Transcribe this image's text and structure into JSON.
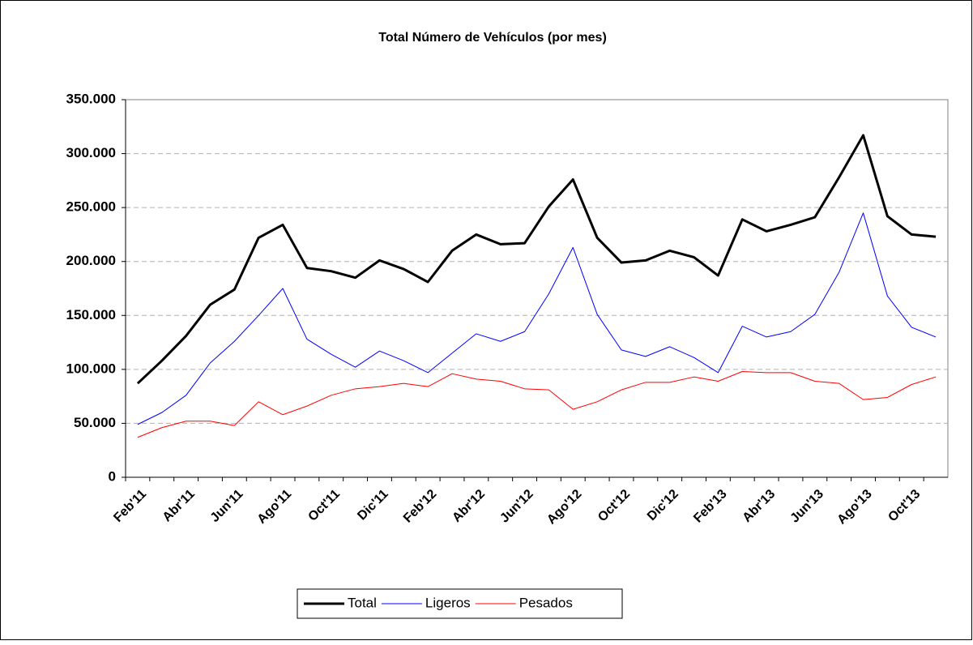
{
  "chart_data": {
    "type": "line",
    "title": "Total Número de Vehículos (por mes)",
    "categories": [
      "Feb'11",
      null,
      "Abr'11",
      null,
      "Jun'11",
      null,
      "Ago'11",
      null,
      "Oct'11",
      null,
      "Dic'11",
      null,
      "Feb'12",
      null,
      "Abr'12",
      null,
      "Jun'12",
      null,
      "Ago'12",
      null,
      "Oct'12",
      null,
      "Dic'12",
      null,
      "Feb'13",
      null,
      "Abr'13",
      null,
      "Jun'13",
      null,
      "Ago'13",
      null,
      "Oct'13",
      null
    ],
    "series": [
      {
        "name": "Total",
        "color": "#000000",
        "width": 3,
        "values": [
          87000,
          108000,
          131000,
          160000,
          174000,
          222000,
          234000,
          194000,
          191000,
          185000,
          201000,
          193000,
          181000,
          210000,
          225000,
          216000,
          217000,
          251000,
          276000,
          222000,
          199000,
          201000,
          210000,
          204000,
          187000,
          239000,
          228000,
          234000,
          241000,
          278000,
          317000,
          242000,
          225000,
          223000
        ]
      },
      {
        "name": "Ligeros",
        "color": "#0000ff",
        "width": 1,
        "values": [
          49000,
          60000,
          76000,
          106000,
          126000,
          150000,
          175000,
          128000,
          114000,
          102000,
          117000,
          108000,
          97000,
          115000,
          133000,
          126000,
          135000,
          170000,
          213000,
          151000,
          118000,
          112000,
          121000,
          111000,
          97000,
          140000,
          130000,
          135000,
          151000,
          190000,
          245000,
          168000,
          139000,
          130000
        ]
      },
      {
        "name": "Pesados",
        "color": "#ff0000",
        "width": 1,
        "values": [
          37000,
          46000,
          52000,
          52000,
          48000,
          70000,
          58000,
          66000,
          76000,
          82000,
          84000,
          87000,
          84000,
          96000,
          91000,
          89000,
          82000,
          81000,
          63000,
          70000,
          81000,
          88000,
          88000,
          93000,
          89000,
          98000,
          97000,
          97000,
          89000,
          87000,
          72000,
          74000,
          86000,
          93000
        ]
      }
    ],
    "ylim": [
      0,
      350000
    ],
    "yticks": [
      0,
      {
        "value": 50000,
        "label": "50.000"
      },
      {
        "value": 100000,
        "label": "100.000"
      },
      {
        "value": 150000,
        "label": "150.000"
      },
      {
        "value": 200000,
        "label": "200.000"
      },
      {
        "value": 250000,
        "label": "250.000"
      },
      {
        "value": 300000,
        "label": "300.000"
      },
      {
        "value": 350000,
        "label": "350.000"
      }
    ],
    "grid": true
  }
}
